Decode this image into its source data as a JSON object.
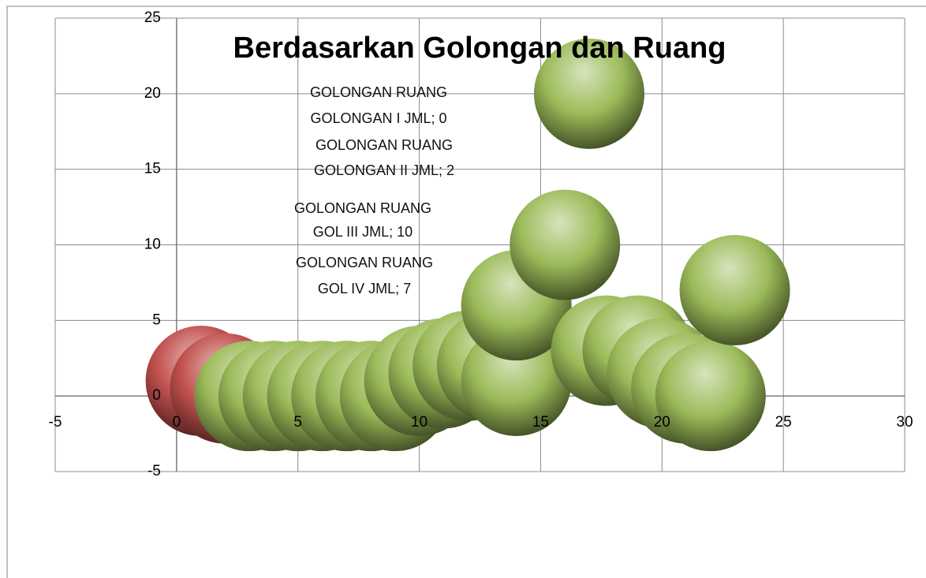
{
  "chart_data": {
    "type": "bubble",
    "title": "Berdasarkan Golongan dan Ruang",
    "annotations": [
      [
        "GOLONGAN RUANG",
        "GOLONGAN  I JML; 0"
      ],
      [
        "GOLONGAN RUANG",
        "GOLONGAN  II JML; 2"
      ],
      [
        "GOLONGAN RUANG",
        "GOL  III JML; 10"
      ],
      [
        "GOLONGAN RUANG",
        "GOL  IV JML; 7"
      ]
    ],
    "xlim": [
      -5,
      30
    ],
    "xticks": [
      -5,
      0,
      5,
      10,
      15,
      20,
      25,
      30
    ],
    "ylim": [
      -5,
      25
    ],
    "yticks": [
      -5,
      0,
      5,
      10,
      15,
      20,
      25
    ],
    "grid": true,
    "series": [
      {
        "color": "#c0504d",
        "x": [
          1,
          2
        ],
        "values": [
          1,
          0.5
        ],
        "sizes": [
          1,
          1
        ]
      },
      {
        "color": "#9bbb59",
        "x": [
          3,
          4,
          5,
          6,
          7,
          8,
          9,
          10,
          11,
          12,
          13,
          14,
          14,
          16,
          17,
          17.7,
          19,
          20,
          21,
          22,
          23
        ],
        "values": [
          0,
          0,
          0,
          0,
          0,
          0,
          0,
          1,
          1.5,
          2,
          2,
          1,
          6,
          10,
          20,
          3,
          3,
          1.5,
          0.5,
          0,
          7
        ],
        "sizes": [
          1,
          1,
          1,
          1,
          1,
          1,
          1,
          1,
          1,
          1,
          1,
          1,
          1,
          1,
          1,
          1,
          1,
          1,
          1,
          1,
          1
        ]
      }
    ]
  }
}
